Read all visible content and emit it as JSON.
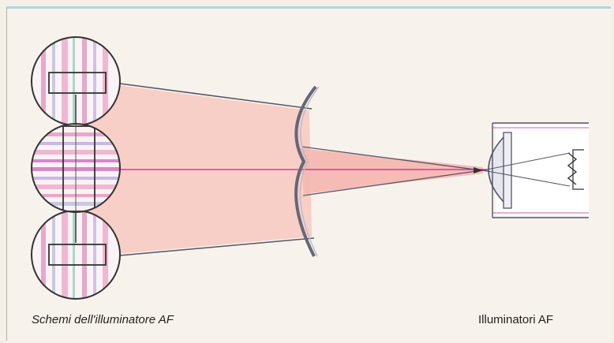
{
  "captions": {
    "left": "Schemi dell'illuminatore AF",
    "right": "Illuminatori AF"
  },
  "colors": {
    "beam_fill": "#f7c8c0",
    "line": "#555566",
    "axis": "#d0208a",
    "pattern_pink": "#e8a8c8",
    "pattern_magenta": "#c040b0"
  }
}
